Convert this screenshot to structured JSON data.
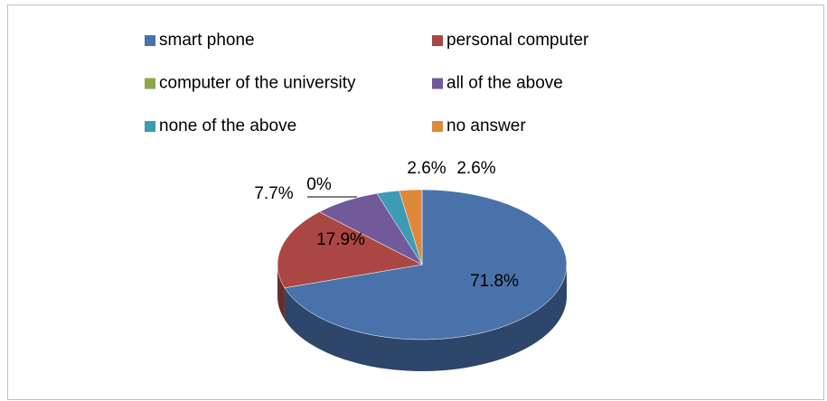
{
  "chart_data": {
    "type": "pie",
    "categories": [
      "smart phone",
      "personal computer",
      "computer of the university",
      "all of the above",
      "none of the above",
      "no answer"
    ],
    "values": [
      71.8,
      17.9,
      0,
      7.7,
      2.6,
      2.6
    ],
    "value_labels": [
      "71.8%",
      "17.9%",
      "0%",
      "7.7%",
      "2.6%",
      "2.6%"
    ],
    "colors": [
      "#4a72aa",
      "#aa4744",
      "#8aa84a",
      "#72599a",
      "#3e9bb5",
      "#e0883a"
    ],
    "legend": "top"
  }
}
